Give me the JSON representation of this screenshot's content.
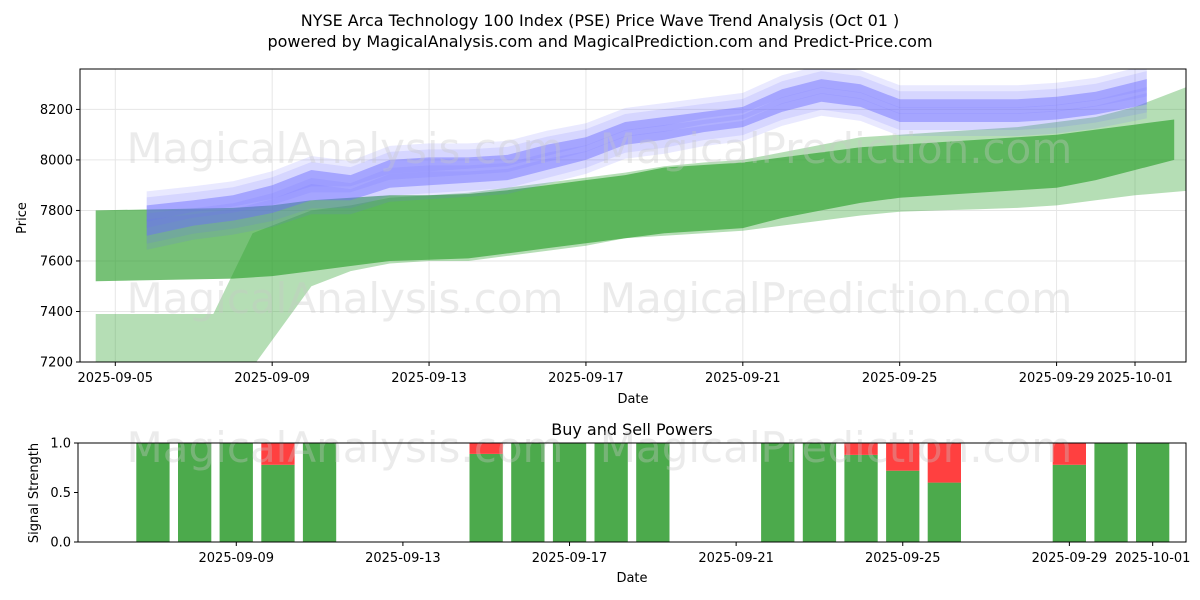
{
  "title_line1": "NYSE Arca Technology 100 Index (PSE) Price Wave Trend Analysis (Oct 01 )",
  "title_line2": "powered by MagicalAnalysis.com and MagicalPrediction.com and Predict-Price.com",
  "watermarks": [
    "MagicalAnalysis.com",
    "MagicalPrediction.com"
  ],
  "colors": {
    "green": "#2ca02c",
    "blue": "#6b6bff",
    "red": "#ff4040",
    "bar_green": "#4caa4c"
  },
  "chart_data": [
    {
      "type": "area",
      "title": "NYSE Arca Technology 100 Index (PSE) Price Wave Trend Analysis (Oct 01 )",
      "xlabel": "Date",
      "ylabel": "Price",
      "ylim": [
        7200,
        8360
      ],
      "yticks": [
        7200,
        7400,
        7600,
        7800,
        8000,
        8200
      ],
      "xticks": [
        "2025-09-05",
        "2025-09-09",
        "2025-09-13",
        "2025-09-17",
        "2025-09-21",
        "2025-09-25",
        "2025-09-29",
        "2025-10-01"
      ],
      "xrange_days": [
        -0.9,
        27.3
      ],
      "green_bands": [
        {
          "x": [
            -0.5,
            3,
            4,
            5,
            6,
            7,
            8,
            9,
            10,
            11,
            12,
            13,
            14,
            15,
            16,
            17,
            18,
            19,
            20,
            21,
            22,
            23,
            24,
            25,
            26,
            27
          ],
          "upper": [
            7800,
            7810,
            7820,
            7840,
            7850,
            7860,
            7860,
            7865,
            7880,
            7900,
            7920,
            7940,
            7970,
            7980,
            7990,
            8010,
            8030,
            8050,
            8060,
            8070,
            8080,
            8090,
            8100,
            8120,
            8140,
            8160
          ],
          "lower": [
            7520,
            7530,
            7540,
            7560,
            7580,
            7600,
            7605,
            7610,
            7630,
            7650,
            7670,
            7690,
            7710,
            7720,
            7730,
            7770,
            7800,
            7830,
            7850,
            7860,
            7870,
            7880,
            7890,
            7920,
            7960,
            8000
          ],
          "opacity": 0.65
        },
        {
          "x": [
            -0.5,
            2.5,
            3.5,
            5,
            6,
            7,
            8,
            9,
            10,
            11,
            12,
            13,
            14,
            15,
            16,
            17,
            18,
            19,
            20,
            21,
            22,
            23,
            24,
            25,
            26,
            27.5
          ],
          "upper": [
            7390,
            7390,
            7710,
            7800,
            7820,
            7850,
            7860,
            7870,
            7890,
            7910,
            7930,
            7950,
            7975,
            7990,
            8000,
            8030,
            8060,
            8090,
            8100,
            8110,
            8120,
            8130,
            8150,
            8170,
            8210,
            8300
          ],
          "lower": [
            7180,
            7180,
            7180,
            7500,
            7560,
            7590,
            7600,
            7600,
            7620,
            7640,
            7660,
            7690,
            7700,
            7710,
            7720,
            7740,
            7760,
            7780,
            7795,
            7800,
            7805,
            7810,
            7820,
            7840,
            7860,
            7880
          ],
          "opacity": 0.35
        }
      ],
      "blue_band": {
        "x": [
          0.8,
          2,
          3,
          4,
          5,
          6,
          7,
          8,
          9,
          10,
          11,
          12,
          13,
          14,
          15,
          16,
          17,
          18,
          19,
          20,
          21,
          22,
          23,
          24,
          25,
          26.3
        ],
        "upper": [
          7820,
          7840,
          7860,
          7900,
          7960,
          7940,
          8000,
          8010,
          8010,
          8020,
          8060,
          8090,
          8150,
          8170,
          8190,
          8210,
          8280,
          8320,
          8300,
          8240,
          8240,
          8240,
          8240,
          8250,
          8270,
          8320
        ],
        "lower": [
          7700,
          7740,
          7760,
          7790,
          7840,
          7840,
          7890,
          7900,
          7910,
          7920,
          7960,
          8000,
          8060,
          8080,
          8110,
          8130,
          8190,
          8230,
          8210,
          8150,
          8150,
          8150,
          8150,
          8160,
          8180,
          8220
        ]
      }
    },
    {
      "type": "bar",
      "title": "Buy and Sell Powers",
      "xlabel": "Date",
      "ylabel": "Signal Strength",
      "ylim": [
        0,
        1
      ],
      "yticks": [
        "0.0",
        "0.5",
        "1.0"
      ],
      "xticks": [
        "2025-09-09",
        "2025-09-13",
        "2025-09-17",
        "2025-09-21",
        "2025-09-25",
        "2025-09-29",
        "2025-10-01"
      ],
      "xrange_days": [
        0.2,
        26.8
      ],
      "days": [
        2,
        3,
        4,
        5,
        6,
        10,
        11,
        12,
        13,
        14,
        17,
        18,
        19,
        20,
        21,
        24,
        25,
        26
      ],
      "buy": [
        1.0,
        1.0,
        1.0,
        0.78,
        1.0,
        0.89,
        1.0,
        1.0,
        1.0,
        1.0,
        1.0,
        1.0,
        0.88,
        0.72,
        0.6,
        0.78,
        1.0,
        1.0
      ],
      "sell": [
        0.0,
        0.0,
        0.0,
        0.22,
        0.0,
        0.11,
        0.0,
        0.0,
        0.0,
        0.0,
        0.0,
        0.0,
        0.12,
        0.28,
        0.4,
        0.22,
        0.0,
        0.0
      ]
    }
  ]
}
